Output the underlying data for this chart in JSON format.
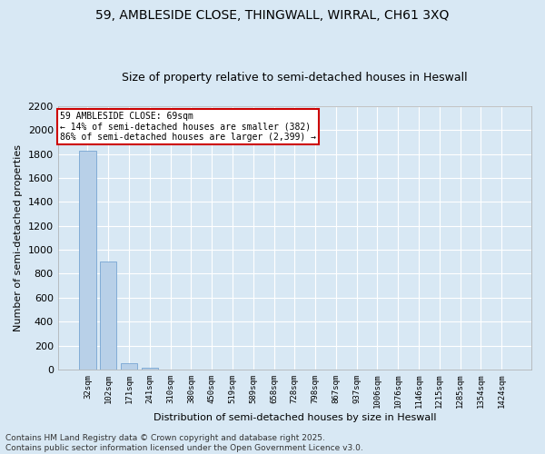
{
  "title1": "59, AMBLESIDE CLOSE, THINGWALL, WIRRAL, CH61 3XQ",
  "title2": "Size of property relative to semi-detached houses in Heswall",
  "xlabel": "Distribution of semi-detached houses by size in Heswall",
  "ylabel": "Number of semi-detached properties",
  "categories": [
    "32sqm",
    "102sqm",
    "171sqm",
    "241sqm",
    "310sqm",
    "380sqm",
    "450sqm",
    "519sqm",
    "589sqm",
    "658sqm",
    "728sqm",
    "798sqm",
    "867sqm",
    "937sqm",
    "1006sqm",
    "1076sqm",
    "1146sqm",
    "1215sqm",
    "1285sqm",
    "1354sqm",
    "1424sqm"
  ],
  "values": [
    1830,
    905,
    50,
    12,
    0,
    0,
    0,
    0,
    0,
    0,
    0,
    0,
    0,
    0,
    0,
    0,
    0,
    0,
    0,
    0,
    0
  ],
  "bar_color": "#b8d0e8",
  "bar_edge_color": "#6699cc",
  "annotation_text": "59 AMBLESIDE CLOSE: 69sqm\n← 14% of semi-detached houses are smaller (382)\n86% of semi-detached houses are larger (2,399) →",
  "annotation_box_facecolor": "#ffffff",
  "annotation_box_edgecolor": "#cc0000",
  "ylim": [
    0,
    2200
  ],
  "yticks": [
    0,
    200,
    400,
    600,
    800,
    1000,
    1200,
    1400,
    1600,
    1800,
    2000,
    2200
  ],
  "background_color": "#d8e8f4",
  "plot_bg_color": "#d8e8f4",
  "grid_color": "#ffffff",
  "title1_fontsize": 10,
  "title2_fontsize": 9,
  "ylabel_fontsize": 8,
  "xlabel_fontsize": 8,
  "footer_text": "Contains HM Land Registry data © Crown copyright and database right 2025.\nContains public sector information licensed under the Open Government Licence v3.0.",
  "footer_fontsize": 6.5
}
